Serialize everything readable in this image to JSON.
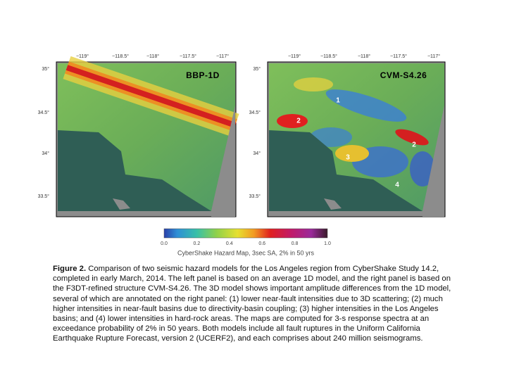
{
  "panels": [
    {
      "title": "BBP-1D",
      "lon_ticks": [
        "−119°",
        "−118.5°",
        "−118°",
        "−117.5°",
        "−117°"
      ],
      "lat_ticks": [
        "35°",
        "34.5°",
        "34°",
        "33.5°"
      ],
      "annotations": []
    },
    {
      "title": "CVM-S4.26",
      "lon_ticks": [
        "−119°",
        "−118.5°",
        "−118°",
        "−117.5°",
        "−117°"
      ],
      "lat_ticks": [
        "35°",
        "34.5°",
        "34°",
        "33.5°"
      ],
      "annotations": [
        "1",
        "2",
        "2",
        "3",
        "4"
      ]
    }
  ],
  "colorbar": {
    "ticks": [
      "0.0",
      "0.2",
      "0.4",
      "0.6",
      "0.8",
      "1.0"
    ],
    "label": "CyberShake Hazard Map, 3sec SA, 2% in 50 yrs"
  },
  "caption": {
    "label": "Figure 2.",
    "text": "Comparison of two seismic hazard models for the Los Angeles region from CyberShake Study 14.2, completed in early March, 2014. The left panel is based on an average 1D model, and the right panel is based on the F3DT-refined structure CVM-S4.26. The 3D model shows important amplitude differences from the 1D model, several of which are annotated on the right panel: (1) lower near-fault intensities due to 3D scattering; (2) much higher intensities in near-fault basins due to directivity-basin coupling; (3) higher intensities in the Los Angeles basins; and (4) lower intensities in hard-rock areas. The maps are computed for 3-s response spectra at an exceedance probability of 2% in 50 years. Both models include all fault ruptures in the Uniform California Earthquake Rupture Forecast, version 2 (UCERF2), and each comprises about 240 million seismograms."
  }
}
